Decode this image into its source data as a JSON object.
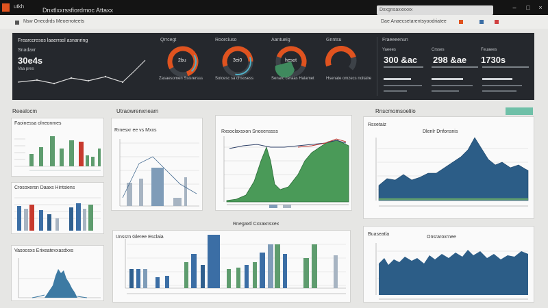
{
  "window": {
    "app_name": "utkh",
    "title": "Dnxtlxxrssfiordmoc Attaxx",
    "search_text": "Dxxgnsaxxxxxx",
    "controls": [
      "–",
      "□",
      "×"
    ]
  },
  "toolbar": {
    "breadcrumb": "Nsw Onecdrds Meoerroteets",
    "right_link": "Dae Anaecsetarentsyoodriatee",
    "accent_colors": [
      "#e0531f",
      "#3b6ea5",
      "#d04040"
    ]
  },
  "kpis": {
    "main": {
      "label": "Frearccresos laaerrasl asnanring",
      "sub": "Snadaxr",
      "value": "30e4s",
      "note": "Vaa pres"
    },
    "gauges": [
      {
        "title": "Qrrcegt",
        "center": "2bu",
        "caption": "Zasaesomen Ssisrersss",
        "fraction": 0.78,
        "color": "#e0531f"
      },
      {
        "title": "Roorciuso",
        "center": "3ei0",
        "caption": "Sotcesc sa chsosess",
        "fraction": 0.55,
        "color": "#e0531f"
      },
      {
        "title": "Aantueig",
        "center": "hesot",
        "caption": "Senarc ceraas Haiamet",
        "fraction": 0.62,
        "color": "#e0531f"
      },
      {
        "title": "Gnntsu",
        "center": "",
        "caption": "Hsenate omzecs noitaire",
        "fraction": 0.45,
        "color": "#e0531f"
      }
    ],
    "stats": {
      "header": "Fraeeeenun",
      "items": [
        {
          "label": "Yaeees",
          "value": "300 &ac"
        },
        {
          "label": "Crsses",
          "value": "298 &ae"
        },
        {
          "label": "Feuaees",
          "value": "1730s"
        }
      ]
    }
  },
  "sections": {
    "left_label": "Reealocm",
    "mid_label": "Utraowrenxnearn",
    "right_label": "Rnscmomsoelilo",
    "mid_bottom_label": "Rnegaxtl Cxxaxnsxex"
  },
  "panels": {
    "p1": {
      "title": "Faoinessa olneonmes"
    },
    "p2": {
      "title": "Crosoxersn Daaxs Hintsiens"
    },
    "p3": {
      "title": "Vasoosxs Erixeatevxasdxxs"
    },
    "p4": {
      "title": "Rrnesxr ee vs Mxxs"
    },
    "p5": {
      "title": "Rxsoclaxsxon Snoxenssss"
    },
    "p6": {
      "title": "Rsxetaiz",
      "subtitle": "Dlenlr Dnfonsnis"
    },
    "p7": {
      "title": "Unssrn Gleree Esclaia"
    },
    "p8": {
      "title": "Buaseatla",
      "subtitle": "Onsraroxrnee"
    }
  }
}
